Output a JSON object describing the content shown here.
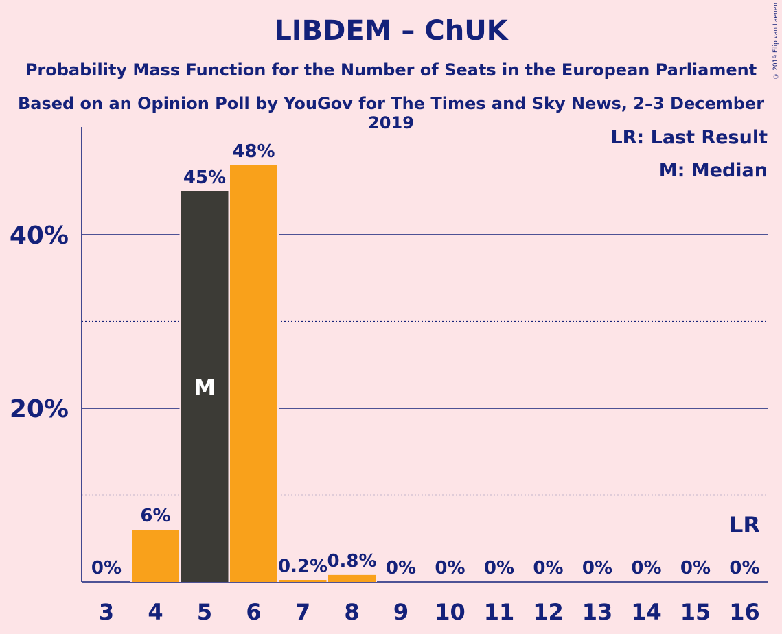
{
  "chart_data": {
    "type": "bar",
    "title": "LIBDEM – ChUK",
    "subtitle": "Probability Mass Function for the Number of Seats in the European Parliament",
    "subtitle2": "Based on an Opinion Poll by YouGov for The Times and Sky News, 2–3 December 2019",
    "copyright": "© 2019 Filip van Laenen",
    "categories": [
      "3",
      "4",
      "5",
      "6",
      "7",
      "8",
      "9",
      "10",
      "11",
      "12",
      "13",
      "14",
      "15",
      "16"
    ],
    "values": [
      0,
      6,
      45,
      48,
      0.2,
      0.8,
      0,
      0,
      0,
      0,
      0,
      0,
      0,
      0
    ],
    "value_labels": [
      "0%",
      "6%",
      "45%",
      "48%",
      "0.2%",
      "0.8%",
      "0%",
      "0%",
      "0%",
      "0%",
      "0%",
      "0%",
      "0%",
      "0%"
    ],
    "median_category": "5",
    "median_marker": "M",
    "last_result_category": "16",
    "last_result_marker": "LR",
    "legend": [
      "LR: Last Result",
      "M: Median"
    ],
    "legend_placement": "top-right",
    "y_ticks": [
      20,
      40
    ],
    "y_tick_labels": [
      "20%",
      "40%"
    ],
    "y_minor_ticks": [
      10,
      30
    ],
    "ylim": [
      0,
      52.5
    ],
    "colors": {
      "bar": "#F9A11B",
      "median_bar": "#3C3B36",
      "text": "#14217A",
      "background": "#FDE4E7"
    }
  }
}
